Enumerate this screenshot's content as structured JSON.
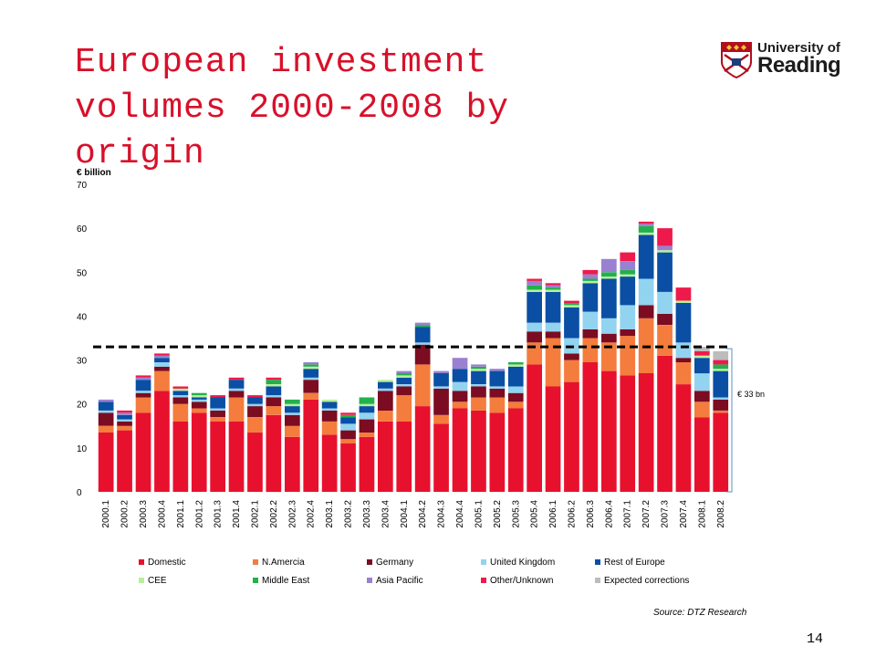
{
  "title": "European investment volumes 2000-2008 by origin",
  "logo": {
    "line1": "University of",
    "line2": "Reading"
  },
  "page_number": "14",
  "source": "Source: DTZ Research",
  "annotation": "€ 33 bn",
  "chart_data": {
    "type": "bar",
    "stacked": true,
    "ylabel": "€ billion",
    "ylim": [
      0,
      70
    ],
    "yticks": [
      0,
      10,
      20,
      30,
      40,
      50,
      60,
      70
    ],
    "reference_line": 33,
    "categories": [
      "2000.1",
      "2000.2",
      "2000.3",
      "2000.4",
      "2001.1",
      "2001.2",
      "2001.3",
      "2001.4",
      "2002.1",
      "2002.2",
      "2002.3",
      "2002.4",
      "2003.1",
      "2003.2",
      "2003.3",
      "2003.4",
      "2004.1",
      "2004.2",
      "2004.3",
      "2004.4",
      "2005.1",
      "2005.2",
      "2005.3",
      "2005.4",
      "2006.1",
      "2006.2",
      "2006.3",
      "2006.4",
      "2007.1",
      "2007.2",
      "2007.3",
      "2007.4",
      "2008.1",
      "2008.2"
    ],
    "series": [
      {
        "name": "Domestic",
        "color": "#e8112d",
        "values": [
          13.5,
          14,
          18,
          23,
          16,
          18,
          16,
          16,
          13.5,
          17.5,
          12.5,
          21,
          13,
          11,
          12.5,
          16,
          16,
          19.5,
          15.5,
          19,
          18.5,
          18,
          19,
          29,
          24,
          25,
          29.5,
          27.5,
          26.5,
          27,
          31,
          24.5,
          17,
          18
        ]
      },
      {
        "name": "N.Amercia",
        "color": "#f47c3c",
        "values": [
          1.5,
          1,
          3.5,
          4.5,
          4,
          1,
          1,
          5.5,
          3.5,
          2,
          2.5,
          1.5,
          3,
          1,
          1,
          2.5,
          6,
          9.5,
          2,
          1.5,
          3,
          3.5,
          1.5,
          5,
          11,
          5,
          5.5,
          6.5,
          9,
          12.5,
          7,
          5,
          3.5,
          0.5
        ]
      },
      {
        "name": "Germany",
        "color": "#7b0c22",
        "values": [
          3,
          1,
          1,
          1,
          1.5,
          1.5,
          1.5,
          1.5,
          2.5,
          2,
          2.5,
          3,
          2.5,
          2,
          3,
          4.5,
          2,
          4.5,
          6,
          2.5,
          2.5,
          2,
          2,
          2.5,
          1.5,
          1.5,
          2,
          2,
          1.5,
          3,
          2.5,
          1,
          2.5,
          2.5
        ]
      },
      {
        "name": "United Kingdom",
        "color": "#92d3f0",
        "values": [
          0.5,
          0.5,
          0.5,
          1,
          0.5,
          0.5,
          0.5,
          0.5,
          0.5,
          0.5,
          0.5,
          0.5,
          0.5,
          1.5,
          1.5,
          0.5,
          0.5,
          0.5,
          0.5,
          2,
          0.5,
          0.5,
          1.5,
          2,
          2,
          3.5,
          4,
          3.5,
          5.5,
          6,
          5,
          3.5,
          4,
          0.5
        ]
      },
      {
        "name": "Rest of Europe",
        "color": "#0a4fa4",
        "values": [
          2,
          1,
          2.5,
          1,
          1,
          0.5,
          2.5,
          2,
          1.5,
          2,
          1.5,
          2,
          1.5,
          1.5,
          1.5,
          1.5,
          1.5,
          3.5,
          3,
          3,
          3,
          3.5,
          4.5,
          7,
          7,
          7,
          6.5,
          9,
          6.5,
          10,
          9,
          9,
          3.5,
          6
        ]
      },
      {
        "name": "CEE",
        "color": "#b8f098",
        "values": [
          0,
          0,
          0,
          0,
          0.5,
          0.5,
          0,
          0,
          0,
          0.5,
          0.5,
          0.5,
          0.5,
          0,
          0.5,
          0.5,
          0.5,
          0,
          0,
          0,
          0.5,
          0,
          0.5,
          0.5,
          0.5,
          0.5,
          0.5,
          0.5,
          0.5,
          0.5,
          0.5,
          0.5,
          0.5,
          0.5
        ]
      },
      {
        "name": "Middle East",
        "color": "#22b14c",
        "values": [
          0,
          0,
          0,
          0,
          0,
          0.5,
          0,
          0,
          0,
          1,
          1,
          0.5,
          0,
          0.5,
          1.5,
          0,
          0.5,
          0.5,
          0,
          0,
          0.5,
          0,
          0.5,
          1,
          0.5,
          0.5,
          0.5,
          1,
          1,
          1.5,
          0,
          0,
          0,
          1
        ]
      },
      {
        "name": "Asia Pacific",
        "color": "#9a80d0",
        "values": [
          0.5,
          0.5,
          0.5,
          0.5,
          0,
          0,
          0,
          0,
          0,
          0,
          0,
          0.5,
          0,
          0,
          0,
          0,
          0.5,
          0.5,
          0.5,
          2.5,
          0.5,
          0.5,
          0,
          1,
          0.5,
          0,
          1,
          3,
          2,
          0.5,
          1,
          0,
          0,
          0
        ]
      },
      {
        "name": "Other/Unknown",
        "color": "#ee1a4c",
        "values": [
          0,
          0.5,
          0.5,
          0.5,
          0.5,
          0,
          0.5,
          0.5,
          0.5,
          0.5,
          0,
          0,
          0,
          0.5,
          0,
          0,
          0,
          0,
          0,
          0,
          0,
          0,
          0,
          0.5,
          0.5,
          0.5,
          1,
          0,
          2,
          0.5,
          4,
          3,
          1,
          1
        ]
      },
      {
        "name": "Expected corrections",
        "color": "#bcbcbc",
        "values": [
          0,
          0,
          0,
          0,
          0,
          0,
          0,
          0,
          0,
          0,
          0,
          0,
          0,
          0,
          0,
          0,
          0,
          0,
          0,
          0,
          0,
          0,
          0,
          0,
          0,
          0,
          0,
          0,
          0,
          0,
          0,
          0,
          1,
          2
        ]
      }
    ]
  }
}
